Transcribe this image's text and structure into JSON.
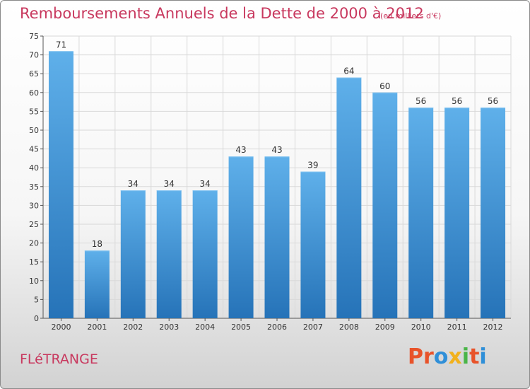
{
  "header": {
    "title": "Remboursements Annuels de la Dette de 2000 à 2012",
    "unit": "(en milliers d'€)"
  },
  "footer": {
    "commune": "FLéTRANGE",
    "logo_text": "Proxiti",
    "logo_colors": [
      "#e8532a",
      "#e8532a",
      "#2f8fd8",
      "#f2b11c",
      "#4ab548",
      "#e8532a",
      "#2f8fd8"
    ]
  },
  "colors": {
    "bar_light": "#5fb0ea",
    "bar_dark": "#2673b8",
    "title": "#c8385e",
    "grid": "#d9d9d9"
  },
  "chart_data": {
    "type": "bar",
    "title": "Remboursements Annuels de la Dette de 2000 à 2012",
    "categories": [
      "2000",
      "2001",
      "2002",
      "2003",
      "2004",
      "2005",
      "2006",
      "2007",
      "2008",
      "2009",
      "2010",
      "2011",
      "2012"
    ],
    "values": [
      71,
      18,
      34,
      34,
      34,
      43,
      43,
      39,
      64,
      60,
      56,
      56,
      56
    ],
    "ylim": [
      0,
      75
    ],
    "yticks": [
      0,
      5,
      10,
      15,
      20,
      25,
      30,
      35,
      40,
      45,
      50,
      55,
      60,
      65,
      70,
      75
    ],
    "grid": true,
    "xlabel": "",
    "ylabel": ""
  }
}
